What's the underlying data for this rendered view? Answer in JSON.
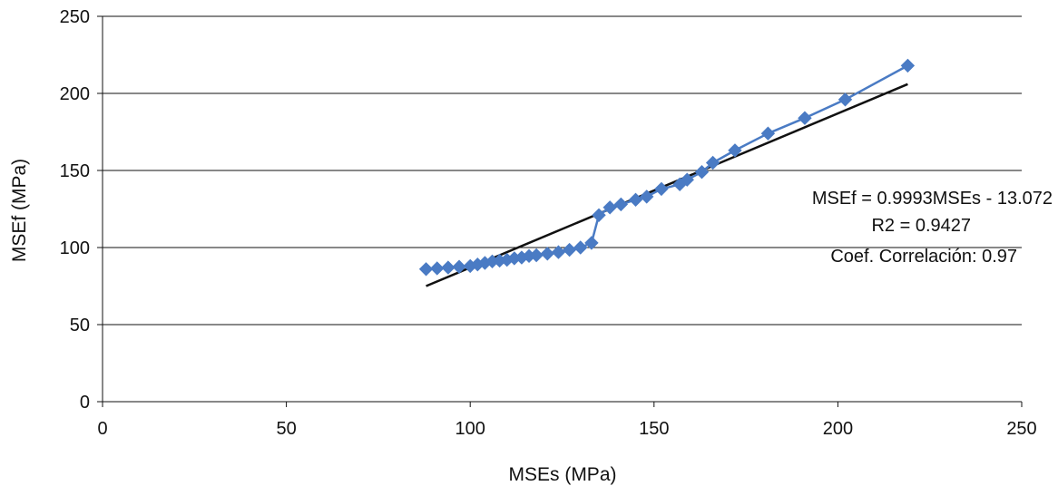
{
  "chart_data": {
    "type": "scatter",
    "title": "",
    "xlabel": "MSEs (MPa)",
    "ylabel": "MSEf (MPa)",
    "xlim": [
      0,
      250
    ],
    "ylim": [
      0,
      250
    ],
    "xticks": [
      "0",
      "50",
      "100",
      "150",
      "200",
      "250"
    ],
    "yticks": [
      "0",
      "50",
      "100",
      "150",
      "200",
      "250"
    ],
    "grid": "horizontal",
    "series": [
      {
        "style": "line-with-diamond-markers",
        "color": "#4a7bc4",
        "x": [
          88,
          91,
          94,
          97,
          100,
          102,
          104,
          106,
          108,
          110,
          112,
          114,
          116,
          118,
          121,
          124,
          127,
          130,
          133,
          135,
          138,
          141,
          145,
          148,
          152,
          157,
          159,
          163,
          166,
          172,
          181,
          191,
          202,
          219
        ],
        "y": [
          86,
          86.5,
          87,
          87.5,
          88,
          89,
          90,
          91,
          91.5,
          92,
          93,
          93.5,
          94.5,
          95,
          96,
          97,
          98.5,
          100,
          103,
          121,
          126,
          128,
          131,
          133,
          138,
          141,
          144,
          149,
          155,
          163,
          174,
          184,
          196,
          218
        ]
      }
    ],
    "trendline": {
      "color": "#111111",
      "x": [
        88,
        219
      ],
      "y": [
        75,
        206
      ]
    },
    "annotations": [
      "MSEf = 0.9993MSEs - 13.072",
      "R2 = 0.9427",
      "Coef. Correlación: 0.97"
    ]
  }
}
